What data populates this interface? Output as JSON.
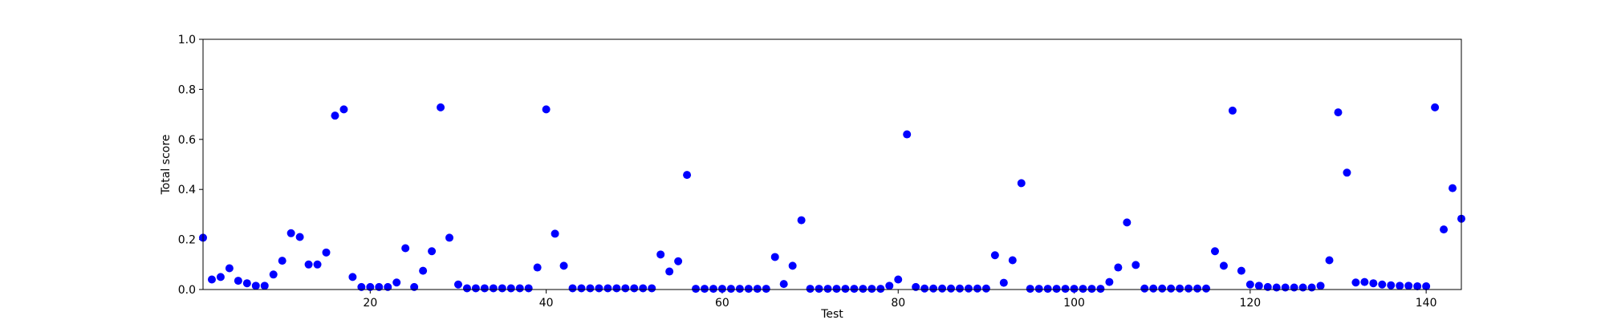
{
  "chart_data": {
    "type": "scatter",
    "x_label": "Test",
    "y_label": "Total score",
    "color": "#0000ff",
    "x": [
      1,
      2,
      3,
      4,
      5,
      6,
      7,
      8,
      9,
      10,
      11,
      12,
      13,
      14,
      15,
      16,
      17,
      18,
      19,
      20,
      21,
      22,
      23,
      24,
      25,
      26,
      27,
      28,
      29,
      30,
      31,
      32,
      33,
      34,
      35,
      36,
      37,
      38,
      39,
      40,
      41,
      42,
      43,
      44,
      45,
      46,
      47,
      48,
      49,
      50,
      51,
      52,
      53,
      54,
      55,
      56,
      57,
      58,
      59,
      60,
      61,
      62,
      63,
      64,
      65,
      66,
      67,
      68,
      69,
      70,
      71,
      72,
      73,
      74,
      75,
      76,
      77,
      78,
      79,
      80,
      81,
      82,
      83,
      84,
      85,
      86,
      87,
      88,
      89,
      90,
      91,
      92,
      93,
      94,
      95,
      96,
      97,
      98,
      99,
      100,
      101,
      102,
      103,
      104,
      105,
      106,
      107,
      108,
      109,
      110,
      111,
      112,
      113,
      114,
      115,
      116,
      117,
      118,
      119,
      120,
      121,
      122,
      123,
      124,
      125,
      126,
      127,
      128,
      129,
      130,
      131,
      132,
      133,
      134,
      135,
      136,
      137,
      138,
      139,
      140,
      141,
      142,
      143,
      144
    ],
    "values": [
      0.207,
      0.04,
      0.05,
      0.085,
      0.035,
      0.025,
      0.015,
      0.015,
      0.06,
      0.115,
      0.225,
      0.21,
      0.1,
      0.1,
      0.148,
      0.695,
      0.72,
      0.05,
      0.01,
      0.01,
      0.01,
      0.01,
      0.028,
      0.165,
      0.01,
      0.075,
      0.153,
      0.728,
      0.207,
      0.02,
      0.005,
      0.005,
      0.005,
      0.005,
      0.005,
      0.005,
      0.005,
      0.005,
      0.088,
      0.72,
      0.223,
      0.095,
      0.005,
      0.005,
      0.005,
      0.005,
      0.005,
      0.005,
      0.005,
      0.005,
      0.005,
      0.005,
      0.14,
      0.072,
      0.113,
      0.458,
      0.003,
      0.003,
      0.003,
      0.003,
      0.003,
      0.003,
      0.003,
      0.003,
      0.003,
      0.13,
      0.022,
      0.095,
      0.277,
      0.003,
      0.003,
      0.003,
      0.003,
      0.003,
      0.003,
      0.003,
      0.003,
      0.003,
      0.015,
      0.04,
      0.62,
      0.01,
      0.004,
      0.004,
      0.004,
      0.004,
      0.004,
      0.004,
      0.004,
      0.004,
      0.137,
      0.027,
      0.117,
      0.425,
      0.003,
      0.003,
      0.003,
      0.003,
      0.003,
      0.003,
      0.003,
      0.003,
      0.003,
      0.03,
      0.088,
      0.268,
      0.098,
      0.004,
      0.004,
      0.004,
      0.004,
      0.004,
      0.004,
      0.004,
      0.004,
      0.153,
      0.095,
      0.715,
      0.075,
      0.02,
      0.015,
      0.01,
      0.008,
      0.008,
      0.008,
      0.008,
      0.008,
      0.015,
      0.117,
      0.708,
      0.467,
      0.028,
      0.03,
      0.025,
      0.02,
      0.017,
      0.015,
      0.015,
      0.013,
      0.013,
      0.728,
      0.24,
      0.405,
      0.283
    ],
    "xlim": [
      1,
      144
    ],
    "xticks": [
      20,
      40,
      60,
      80,
      100,
      120,
      140
    ],
    "ylim": [
      0,
      1
    ],
    "yticks": [
      {
        "value": 0,
        "label": "0.0"
      },
      0.2,
      0.4,
      0.6,
      0.8,
      {
        "value": 1,
        "label": "1.0"
      }
    ]
  }
}
